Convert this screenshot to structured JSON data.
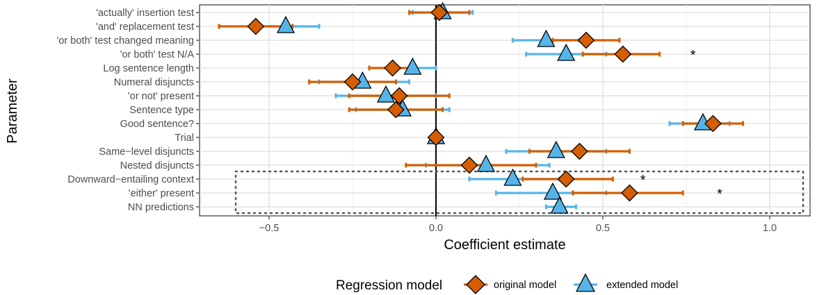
{
  "chart_data": {
    "type": "forest-plot",
    "xlabel": "Coefficient estimate",
    "ylabel": "Parameter",
    "xlim": [
      -0.73,
      1.17
    ],
    "x_ticks": [
      "−0.5",
      "0.0",
      "0.5",
      "1.0"
    ],
    "x_tick_values": [
      -0.5,
      0.0,
      0.5,
      1.0
    ],
    "grid": true,
    "legend_position": "bottom",
    "legend_title": "Regression model",
    "parameters": [
      "'actually' insertion test",
      "'and' replacement test",
      "'or both' test changed meaning",
      "'or both' test N/A",
      "Log sentence length",
      "Numeral disjuncts",
      "'or not' present",
      "Sentence type",
      "Good sentence?",
      "Trial",
      "Same−level disjuncts",
      "Nested disjuncts",
      "Downward−entailing context",
      "'either' present",
      "NN predictions"
    ],
    "series": [
      {
        "name": "original model",
        "marker": "diamond",
        "color": "#D55E00",
        "estimates": [
          0.01,
          -0.54,
          0.45,
          0.56,
          -0.13,
          -0.25,
          -0.11,
          -0.12,
          0.83,
          0.0,
          0.43,
          0.1,
          0.39,
          0.58,
          null
        ],
        "ci_low": [
          -0.08,
          -0.65,
          0.35,
          0.44,
          -0.2,
          -0.38,
          -0.26,
          -0.26,
          0.74,
          null,
          0.28,
          -0.09,
          0.26,
          0.41,
          null
        ],
        "ci_high": [
          0.1,
          -0.43,
          0.55,
          0.67,
          -0.06,
          -0.12,
          0.04,
          0.02,
          0.92,
          null,
          0.58,
          0.3,
          0.53,
          0.74,
          null
        ]
      },
      {
        "name": "extended model",
        "marker": "triangle",
        "color": "#56B4E9",
        "estimates": [
          0.02,
          -0.45,
          0.33,
          0.39,
          -0.07,
          -0.22,
          -0.15,
          -0.1,
          0.8,
          0.0,
          0.36,
          0.15,
          0.23,
          0.35,
          0.37
        ],
        "ci_low": [
          -0.07,
          -0.55,
          0.23,
          0.27,
          -0.14,
          -0.35,
          -0.3,
          -0.24,
          0.7,
          null,
          0.21,
          -0.03,
          0.1,
          0.18,
          0.33
        ],
        "ci_high": [
          0.11,
          -0.35,
          0.43,
          0.51,
          0.0,
          -0.08,
          0.0,
          0.04,
          0.88,
          null,
          0.51,
          0.34,
          0.37,
          0.51,
          0.42
        ]
      }
    ],
    "annotations": [
      {
        "text": "*",
        "parameter": "'or both' test N/A",
        "x": 0.77
      },
      {
        "text": "*",
        "parameter": "Downward−entailing context",
        "x": 0.62
      },
      {
        "text": "*",
        "parameter": "'either' present",
        "x": 0.85
      }
    ],
    "highlight_box": {
      "style": "dotted",
      "rows": [
        "Downward−entailing context",
        "'either' present",
        "NN predictions"
      ],
      "x_range": [
        -0.6,
        1.1
      ]
    }
  }
}
